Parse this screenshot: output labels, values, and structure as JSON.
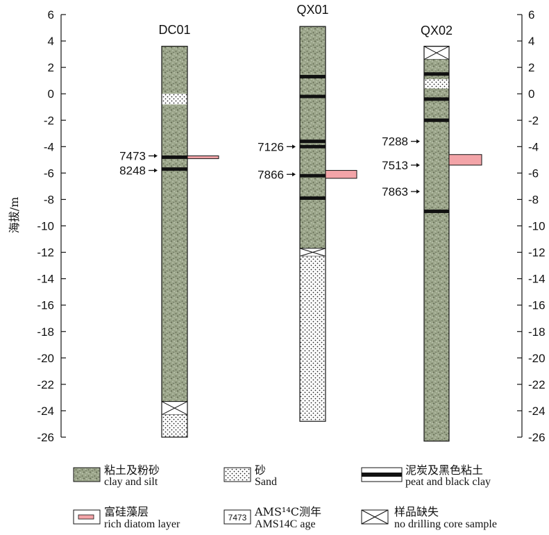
{
  "axis": {
    "title": "海拔/m",
    "min": -26,
    "max": 6,
    "step": 2
  },
  "cores": [
    {
      "name": "DC01",
      "top": 3.6,
      "bottom": -26,
      "units": [
        {
          "type": "clay",
          "from": 3.6,
          "to": 0
        },
        {
          "type": "sand",
          "from": 0,
          "to": -0.8
        },
        {
          "type": "clay",
          "from": -0.8,
          "to": -23.3
        },
        {
          "type": "missing",
          "from": -23.3,
          "to": -24.3
        },
        {
          "type": "sand",
          "from": -24.3,
          "to": -26
        }
      ],
      "peats": [
        -4.8,
        -5.7
      ],
      "diatom": {
        "from": -4.7,
        "to": -4.9,
        "width": 45
      },
      "ages": [
        {
          "label": "7473",
          "depth": -4.7
        },
        {
          "label": "8248",
          "depth": -5.8
        }
      ]
    },
    {
      "name": "QX01",
      "top": 5.1,
      "bottom": -24.8,
      "units": [
        {
          "type": "clay",
          "from": 5.1,
          "to": -11.7
        },
        {
          "type": "missing",
          "from": -11.7,
          "to": -12.3
        },
        {
          "type": "sand",
          "from": -12.3,
          "to": -24.8
        }
      ],
      "peats": [
        1.3,
        -0.2,
        -3.6,
        -4.0,
        -6.2,
        -7.9
      ],
      "diatom": {
        "from": -5.8,
        "to": -6.4,
        "width": 45
      },
      "ages": [
        {
          "label": "7126",
          "depth": -4.0
        },
        {
          "label": "7866",
          "depth": -6.1
        }
      ]
    },
    {
      "name": "QX02",
      "top": 3.6,
      "bottom": -26.3,
      "units": [
        {
          "type": "missing",
          "from": 3.6,
          "to": 2.6
        },
        {
          "type": "clay",
          "from": 2.6,
          "to": 1.1
        },
        {
          "type": "sand",
          "from": 1.1,
          "to": 0.4
        },
        {
          "type": "clay",
          "from": 0.4,
          "to": -26.3
        }
      ],
      "peats": [
        1.5,
        -0.4,
        -2.0,
        -8.9
      ],
      "diatom": {
        "from": -4.6,
        "to": -5.4,
        "width": 47
      },
      "ages": [
        {
          "label": "7288",
          "depth": -3.6
        },
        {
          "label": "7513",
          "depth": -5.4
        },
        {
          "label": "7863",
          "depth": -7.4
        }
      ]
    }
  ],
  "legend": [
    {
      "symbol": "clay",
      "cn": "粘土及粉砂",
      "en": "clay and silt"
    },
    {
      "symbol": "sand",
      "cn": "砂",
      "en": "Sand"
    },
    {
      "symbol": "peat",
      "cn": "泥炭及黑色粘土",
      "en": "peat and black clay"
    },
    {
      "symbol": "diatom",
      "cn": "富硅藻层",
      "en": "rich diatom layer"
    },
    {
      "symbol": "age",
      "symbol_text": "7473",
      "cn": "AMS¹⁴C测年",
      "en": "AMS14C age"
    },
    {
      "symbol": "missing",
      "cn": "样品缺失",
      "en": "no drilling core sample"
    }
  ],
  "colors": {
    "clay_bg": "#9ba58a",
    "clay_dark": "#5f6650",
    "clay_light": "#cfd5c2",
    "sand_bg": "#ffffff",
    "sand_dot": "#222222",
    "peat": "#111111",
    "diatom": "#f3a4a8",
    "axis": "#111111"
  }
}
